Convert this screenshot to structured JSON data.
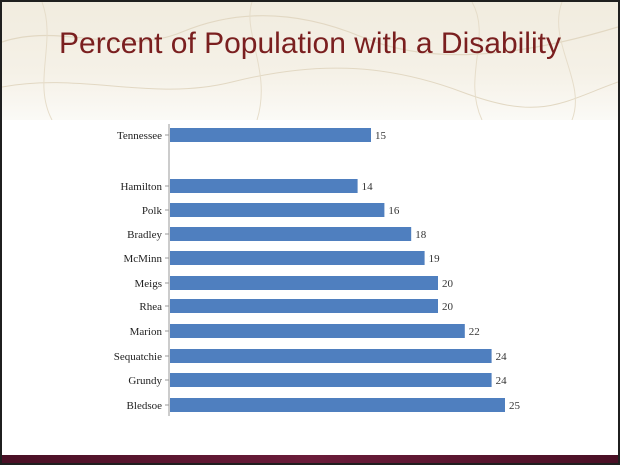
{
  "slide": {
    "title": "Percent of Population with a Disability"
  },
  "chart_data": {
    "type": "bar",
    "orientation": "horizontal",
    "title": "Percent of Population with a Disability",
    "xlabel": "",
    "ylabel": "",
    "grid": false,
    "legend": "none",
    "categories": [
      "Tennessee",
      "Hamilton",
      "Polk",
      "Bradley",
      "McMinn",
      "Meigs",
      "Rhea",
      "Marion",
      "Sequatchie",
      "Grundy",
      "Bledsoe"
    ],
    "values": [
      15,
      14,
      16,
      18,
      19,
      20,
      20,
      22,
      24,
      24,
      25
    ],
    "data_labels": [
      "15",
      "14",
      "16",
      "18",
      "19",
      "20",
      "20",
      "22",
      "24",
      "24",
      "25"
    ],
    "bar_color": "#4f7fbf",
    "title_color": "#7a1f1f"
  }
}
